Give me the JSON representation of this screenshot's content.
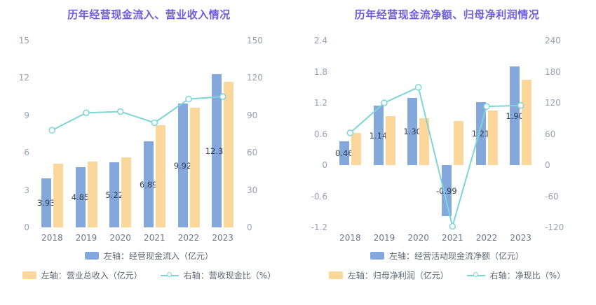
{
  "colors": {
    "bar1": "#84a8dc",
    "bar2": "#fbd79c",
    "line": "#7ed5d5",
    "title": "#6d5ce0",
    "tick": "#98a2b3",
    "xlabel": "#6b7685",
    "value_label": "#333f4d",
    "legend_text": "#5a6570",
    "background": "#ffffff"
  },
  "chart_data": [
    {
      "type": "bar",
      "title": "历年经营现金流入、营业收入情况",
      "categories": [
        "2018",
        "2019",
        "2020",
        "2021",
        "2022",
        "2023"
      ],
      "left_axis": {
        "min": 0,
        "max": 15,
        "ticks": [
          "15",
          "12",
          "9",
          "6",
          "3",
          "0"
        ]
      },
      "right_axis": {
        "min": 0,
        "max": 150,
        "ticks": [
          "150",
          "120",
          "90",
          "60",
          "30",
          "0"
        ]
      },
      "series": [
        {
          "name": "左轴：经营现金流入（亿元）",
          "type": "bar",
          "axis": "left",
          "color_key": "bar1",
          "values": [
            3.93,
            4.85,
            5.22,
            6.89,
            9.92,
            12.3
          ],
          "labels": [
            "3.93",
            "4.85",
            "5.22",
            "6.89",
            "9.92",
            "12.30"
          ]
        },
        {
          "name": "左轴：营业总收入（亿元）",
          "type": "bar",
          "axis": "left",
          "color_key": "bar2",
          "values": [
            5.1,
            5.3,
            5.6,
            8.2,
            9.6,
            11.7
          ]
        },
        {
          "name": "右轴：营收现金比（%）",
          "type": "line",
          "axis": "right",
          "color_key": "line",
          "values": [
            78,
            92,
            93,
            84,
            103,
            105
          ]
        }
      ],
      "legend_position": "bottom",
      "grid": false
    },
    {
      "type": "bar",
      "title": "历年经营现金流净额、归母净利润情况",
      "categories": [
        "2018",
        "2019",
        "2020",
        "2021",
        "2022",
        "2023"
      ],
      "left_axis": {
        "min": -1.2,
        "max": 2.4,
        "ticks": [
          "2.4",
          "1.8",
          "1.2",
          "0.6",
          "0",
          "-0.6",
          "-1.2"
        ]
      },
      "right_axis": {
        "min": -120,
        "max": 240,
        "ticks": [
          "240",
          "180",
          "120",
          "60",
          "0",
          "-60",
          "-120"
        ]
      },
      "series": [
        {
          "name": "左轴：经营活动现金流净额（亿元）",
          "type": "bar",
          "axis": "left",
          "color_key": "bar1",
          "values": [
            0.46,
            1.14,
            1.3,
            -0.99,
            1.21,
            1.9
          ],
          "labels": [
            "0.46",
            "1.14",
            "1.30",
            "-0.99",
            "1.21",
            "1.90"
          ]
        },
        {
          "name": "左轴：归母净利润（亿元）",
          "type": "bar",
          "axis": "left",
          "color_key": "bar2",
          "values": [
            0.62,
            0.95,
            0.9,
            0.85,
            1.05,
            1.65
          ]
        },
        {
          "name": "右轴：净现比（%）",
          "type": "line",
          "axis": "right",
          "color_key": "line",
          "values": [
            62,
            120,
            150,
            -118,
            113,
            115
          ]
        }
      ],
      "legend_position": "bottom",
      "grid": false
    }
  ]
}
